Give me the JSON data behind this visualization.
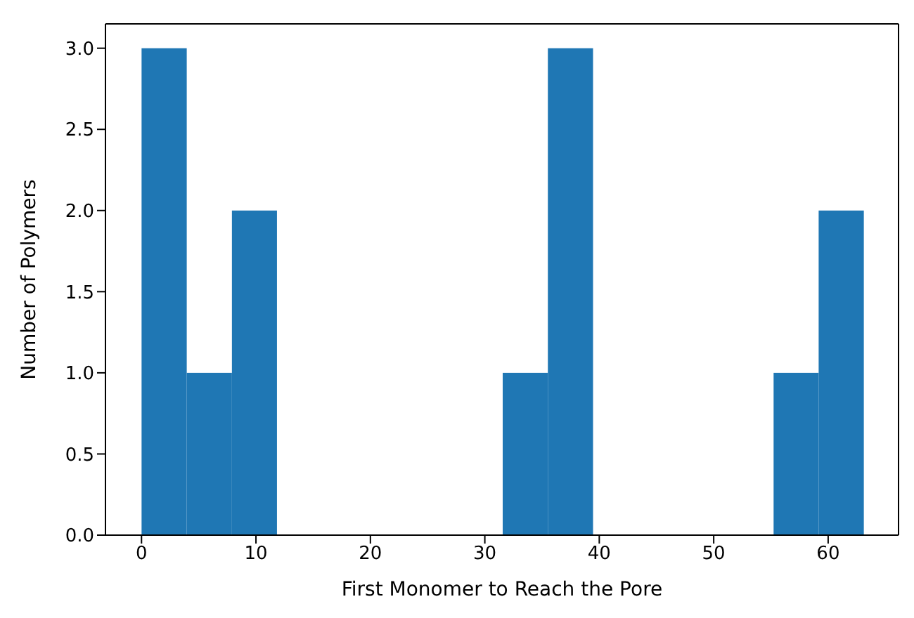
{
  "chart_data": {
    "type": "histogram",
    "xlabel": "First Monomer to Reach the Pore",
    "ylabel": "Number of Polymers",
    "bins": [
      0,
      3.94,
      7.88,
      11.81,
      15.75,
      19.69,
      23.63,
      27.56,
      31.5,
      35.44,
      39.38,
      43.31,
      47.25,
      51.19,
      55.13,
      59.06,
      63
    ],
    "values": [
      3,
      1,
      2,
      0,
      0,
      0,
      0,
      0,
      1,
      3,
      0,
      0,
      0,
      0,
      1,
      2
    ],
    "color": "#1f77b4",
    "xlim": [
      -3.15,
      66.15
    ],
    "xticks": [
      0,
      10,
      20,
      30,
      40,
      50,
      60
    ],
    "ylim": [
      0,
      3.15
    ],
    "yticks": [
      {
        "value": 0,
        "label": "0.0"
      },
      {
        "value": 0.5,
        "label": "0.5"
      },
      {
        "value": 1,
        "label": "1.0"
      },
      {
        "value": 1.5,
        "label": "1.5"
      },
      {
        "value": 2,
        "label": "2.0"
      },
      {
        "value": 2.5,
        "label": "2.5"
      },
      {
        "value": 3,
        "label": "3.0"
      }
    ],
    "grid": false,
    "legend": false
  }
}
